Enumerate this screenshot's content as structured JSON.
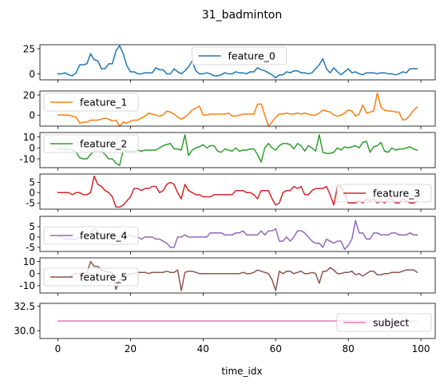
{
  "chart_data": {
    "type": "line",
    "title": "31_badminton",
    "xlabel": "time_idx",
    "xlim": [
      -4.95,
      103.95
    ],
    "xticks": [
      0,
      20,
      40,
      60,
      80,
      100
    ],
    "subplots": [
      {
        "name": "feature_0",
        "color": "#1f77b4",
        "ylim": [
          -6,
          29
        ],
        "yticks": [
          0,
          25
        ],
        "legend": "top-center",
        "values": [
          0,
          0,
          1,
          -1,
          -2,
          1,
          9,
          9,
          10,
          20,
          14,
          13,
          5,
          5,
          10,
          10,
          23,
          28,
          20,
          8,
          2,
          2,
          0,
          0,
          1,
          1,
          1,
          6,
          4,
          4,
          0,
          0,
          5,
          2,
          0,
          3,
          7,
          13,
          3,
          0,
          0,
          1,
          0,
          -2,
          -2,
          -1,
          1,
          0,
          0,
          2,
          1,
          1,
          0,
          2,
          2,
          6,
          4,
          3,
          1,
          -1,
          -4,
          -1,
          -1,
          2,
          1,
          3,
          3,
          1,
          1,
          0,
          1,
          5,
          9,
          15,
          5,
          1,
          6,
          2,
          -1,
          2,
          5,
          1,
          2,
          0,
          -1,
          1,
          1,
          1,
          0,
          1,
          1,
          0,
          0,
          -1,
          0,
          2,
          1,
          5,
          5,
          5
        ]
      },
      {
        "name": "feature_1",
        "color": "#ff7f0e",
        "ylim": [
          -11,
          24
        ],
        "yticks": [
          0,
          20
        ],
        "legend": "top-left",
        "values": [
          0,
          0,
          0,
          0,
          -1,
          -2,
          -8,
          -7,
          -7,
          -5,
          -5,
          -5,
          -4,
          -3,
          -4,
          -6,
          -5,
          -11,
          -7,
          -8,
          -6,
          -5,
          -5,
          -3,
          -1,
          2,
          1,
          0,
          -1,
          0,
          4,
          3,
          1,
          -2,
          -4,
          -2,
          1,
          5,
          7,
          9,
          0,
          0,
          1,
          1,
          1,
          1,
          1,
          2,
          -1,
          -1,
          0,
          1,
          1,
          1,
          1,
          11,
          11,
          0,
          -11,
          -7,
          -2,
          1,
          1,
          2,
          1,
          1,
          2,
          1,
          2,
          1,
          0,
          0,
          2,
          5,
          4,
          3,
          0,
          -1,
          0,
          2,
          5,
          4,
          -1,
          1,
          10,
          2,
          3,
          4,
          22,
          8,
          5,
          4,
          4,
          3,
          3,
          -5,
          -4,
          0,
          5,
          8
        ]
      },
      {
        "name": "feature_2",
        "color": "#2ca02c",
        "ylim": [
          -18,
          14
        ],
        "yticks": [
          -10,
          0,
          10
        ],
        "legend": "top-left",
        "values": [
          -1,
          -1,
          -1,
          -1,
          -2,
          -4,
          -9,
          -10,
          -10,
          -6,
          -3,
          -3,
          -3,
          -6,
          -10,
          -10,
          -14,
          -16,
          -2,
          -3,
          -3,
          -3,
          -2,
          -3,
          -2,
          -2,
          -2,
          -2,
          0,
          2,
          3,
          4,
          -1,
          -1,
          -2,
          12,
          -7,
          -2,
          0,
          1,
          3,
          0,
          2,
          2,
          -3,
          -4,
          -1,
          -2,
          -3,
          0,
          -3,
          -2,
          -2,
          -1,
          -1,
          -6,
          -13,
          0,
          4,
          0,
          -2,
          2,
          4,
          4,
          3,
          -1,
          4,
          2,
          -3,
          2,
          0,
          -3,
          12,
          -4,
          -5,
          -5,
          -4,
          0,
          -2,
          1,
          0,
          1,
          2,
          0,
          5,
          6,
          -4,
          1,
          2,
          5,
          -3,
          -4,
          0,
          -2,
          -1,
          -1,
          0,
          1,
          -1,
          -2
        ]
      },
      {
        "name": "feature_3",
        "color": "#d62728",
        "ylim": [
          -8,
          9
        ],
        "yticks": [
          -5,
          0,
          5
        ],
        "legend": "center-right",
        "values": [
          0,
          0,
          0,
          0,
          -1,
          0,
          0,
          -1,
          -1,
          0,
          8,
          4,
          3,
          1,
          0,
          -2,
          -7,
          -7,
          -6,
          -4,
          -2,
          2,
          2,
          1,
          2,
          2,
          3,
          3,
          0,
          1,
          4,
          5,
          4,
          0,
          -3,
          4,
          1,
          0,
          -1,
          -1,
          -2,
          -2,
          -2,
          -1,
          -1,
          -1,
          -1,
          -1,
          -1,
          1,
          1,
          1,
          0,
          0,
          -1,
          -3,
          1,
          1,
          1,
          -3,
          -6,
          -5,
          0,
          1,
          1,
          3,
          2,
          3,
          -1,
          -1,
          1,
          2,
          2,
          2,
          3,
          -1,
          -6,
          3,
          3,
          0,
          -5,
          -5,
          -5,
          -4,
          -5,
          -3,
          -4,
          -3,
          -5,
          -4,
          -5,
          -3,
          -3,
          -5,
          -5,
          -3,
          -4,
          -5,
          -5,
          -4
        ]
      },
      {
        "name": "feature_4",
        "color": "#9467bd",
        "ylim": [
          -7,
          10
        ],
        "yticks": [
          -5,
          0,
          5
        ],
        "legend": "center-left",
        "values": [
          0,
          0,
          -1,
          -1,
          -1,
          -1,
          0,
          0,
          0,
          2,
          4,
          3,
          0,
          0,
          0,
          1,
          0,
          0,
          2,
          0,
          1,
          0,
          0,
          -1,
          0,
          0,
          0,
          -1,
          -1,
          -2,
          -3,
          -5,
          -5,
          0,
          0,
          1,
          0,
          0,
          0,
          0,
          0,
          0,
          2,
          2,
          2,
          2,
          1,
          1,
          1,
          2,
          2,
          3,
          1,
          1,
          1,
          1,
          3,
          1,
          3,
          3,
          4,
          -2,
          -2,
          0,
          -2,
          0,
          3,
          3,
          2,
          0,
          -2,
          -3,
          -3,
          -5,
          -1,
          -2,
          -3,
          -2,
          -2,
          -6,
          -4,
          -1,
          8,
          2,
          2,
          -1,
          -1,
          2,
          2,
          1,
          1,
          1,
          2,
          2,
          1,
          1,
          1,
          2,
          1,
          1
        ]
      },
      {
        "name": "feature_5",
        "color": "#8c564b",
        "ylim": [
          -16,
          13
        ],
        "yticks": [
          -10,
          0,
          10
        ],
        "legend": "center-left",
        "values": [
          -3,
          -3,
          -3,
          -3,
          -1,
          0,
          0,
          1,
          0,
          10,
          6,
          6,
          3,
          2,
          1,
          1,
          -13,
          -5,
          -3,
          -2,
          0,
          0,
          1,
          1,
          1,
          0,
          1,
          1,
          1,
          1,
          2,
          1,
          1,
          3,
          -14,
          1,
          2,
          2,
          1,
          0,
          0,
          0,
          0,
          0,
          0,
          0,
          0,
          0,
          0,
          0,
          0,
          1,
          0,
          0,
          1,
          3,
          2,
          1,
          0,
          -5,
          -14,
          2,
          0,
          2,
          2,
          0,
          1,
          2,
          0,
          0,
          1,
          0,
          -8,
          2,
          2,
          5,
          3,
          0,
          0,
          1,
          1,
          2,
          -1,
          0,
          -2,
          0,
          2,
          2,
          -1,
          -1,
          0,
          0,
          1,
          1,
          1,
          2,
          3,
          3,
          3,
          1
        ]
      },
      {
        "name": "subject",
        "color": "#e377c2",
        "ylim": [
          29.2,
          32.8
        ],
        "yticks": [
          30.0,
          32.5
        ],
        "legend": "center-right",
        "values": [
          31,
          31,
          31,
          31,
          31,
          31,
          31,
          31,
          31,
          31,
          31,
          31,
          31,
          31,
          31,
          31,
          31,
          31,
          31,
          31,
          31,
          31,
          31,
          31,
          31,
          31,
          31,
          31,
          31,
          31,
          31,
          31,
          31,
          31,
          31,
          31,
          31,
          31,
          31,
          31,
          31,
          31,
          31,
          31,
          31,
          31,
          31,
          31,
          31,
          31,
          31,
          31,
          31,
          31,
          31,
          31,
          31,
          31,
          31,
          31,
          31,
          31,
          31,
          31,
          31,
          31,
          31,
          31,
          31,
          31,
          31,
          31,
          31,
          31,
          31,
          31,
          31,
          31,
          31,
          31,
          31,
          31,
          31,
          31,
          31,
          31,
          31,
          31,
          31,
          31,
          31,
          31,
          31,
          31,
          31,
          31,
          31,
          31,
          31,
          31
        ]
      }
    ]
  }
}
